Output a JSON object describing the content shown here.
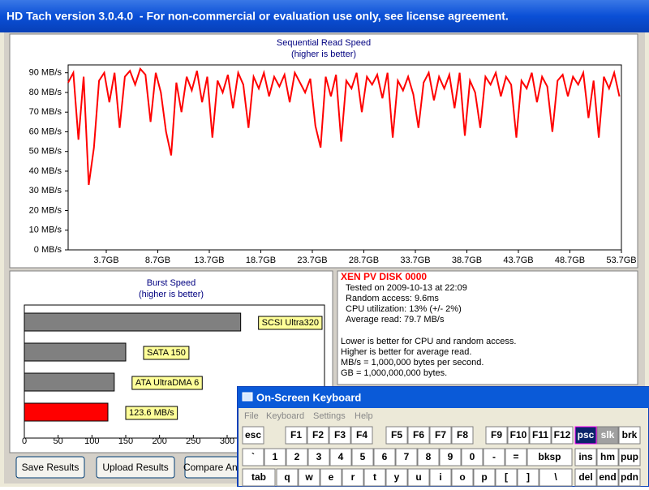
{
  "window": {
    "title": "HD Tach version 3.0.4.0  - For non-commercial or evaluation use only, see license agreement."
  },
  "chart_data": [
    {
      "type": "line",
      "title": "Sequential Read Speed",
      "subtitle": "(higher is better)",
      "x": [
        0,
        0.5,
        1,
        1.5,
        2,
        2.5,
        3,
        3.5,
        4,
        4.5,
        5,
        5.5,
        6,
        6.5,
        7,
        7.5,
        8,
        8.5,
        9,
        9.5,
        10,
        10.5,
        11,
        11.5,
        12,
        12.5,
        13,
        13.5,
        14,
        14.5,
        15,
        15.5,
        16,
        16.5,
        17,
        17.5,
        18,
        18.5,
        19,
        19.5,
        20,
        20.5,
        21,
        21.5,
        22,
        22.5,
        23,
        23.5,
        24,
        24.5,
        25,
        25.5,
        26,
        26.5,
        27,
        27.5,
        28,
        28.5,
        29,
        29.5,
        30,
        30.5,
        31,
        31.5,
        32,
        32.5,
        33,
        33.5,
        34,
        34.5,
        35,
        35.5,
        36,
        36.5,
        37,
        37.5,
        38,
        38.5,
        39,
        39.5,
        40,
        40.5,
        41,
        41.5,
        42,
        42.5,
        43,
        43.5,
        44,
        44.5,
        45,
        45.5,
        46,
        46.5,
        47,
        47.5,
        48,
        48.5,
        49,
        49.5,
        50,
        50.5,
        51,
        51.5,
        52,
        52.5,
        53,
        53.5
      ],
      "values": [
        85,
        90,
        56,
        88,
        33,
        52,
        86,
        90,
        75,
        90,
        62,
        88,
        91,
        84,
        92,
        89,
        65,
        90,
        80,
        60,
        48,
        85,
        70,
        88,
        81,
        91,
        75,
        88,
        57,
        86,
        80,
        89,
        72,
        90,
        84,
        62,
        88,
        82,
        90,
        78,
        88,
        83,
        89,
        75,
        90,
        85,
        80,
        87,
        63,
        52,
        88,
        78,
        89,
        55,
        86,
        82,
        90,
        70,
        88,
        84,
        89,
        77,
        90,
        57,
        86,
        81,
        88,
        79,
        62,
        85,
        90,
        76,
        88,
        82,
        89,
        72,
        90,
        58,
        86,
        80,
        62,
        88,
        84,
        90,
        78,
        88,
        84,
        57,
        86,
        82,
        90,
        75,
        88,
        83,
        60,
        86,
        89,
        78,
        88,
        84,
        90,
        67,
        86,
        57,
        88,
        82,
        90,
        78
      ],
      "color": "#ff0000",
      "xlim": [
        0,
        53.7
      ],
      "xticks": [
        {
          "value": 3.7,
          "label": "3.7GB"
        },
        {
          "value": 8.7,
          "label": "8.7GB"
        },
        {
          "value": 13.7,
          "label": "13.7GB"
        },
        {
          "value": 18.7,
          "label": "18.7GB"
        },
        {
          "value": 23.7,
          "label": "23.7GB"
        },
        {
          "value": 28.7,
          "label": "28.7GB"
        },
        {
          "value": 33.7,
          "label": "33.7GB"
        },
        {
          "value": 38.7,
          "label": "38.7GB"
        },
        {
          "value": 43.7,
          "label": "43.7GB"
        },
        {
          "value": 48.7,
          "label": "48.7GB"
        },
        {
          "value": 53.7,
          "label": "53.7GB"
        }
      ],
      "ylim": [
        0,
        94
      ],
      "yticks": [
        {
          "value": 0,
          "label": "0 MB/s"
        },
        {
          "value": 10,
          "label": "10 MB/s"
        },
        {
          "value": 20,
          "label": "20 MB/s"
        },
        {
          "value": 30,
          "label": "30 MB/s"
        },
        {
          "value": 40,
          "label": "40 MB/s"
        },
        {
          "value": 50,
          "label": "50 MB/s"
        },
        {
          "value": 60,
          "label": "60 MB/s"
        },
        {
          "value": 70,
          "label": "70 MB/s"
        },
        {
          "value": 80,
          "label": "80 MB/s"
        },
        {
          "value": 90,
          "label": "90 MB/s"
        }
      ],
      "grid": false
    },
    {
      "type": "hbar",
      "title": "Burst Speed",
      "subtitle": "(higher is better)",
      "categories": [
        "SCSI Ultra320",
        "SATA 150",
        "ATA UltraDMA 6",
        null
      ],
      "values": [
        320,
        150,
        133,
        123.6
      ],
      "value_labels": [
        null,
        null,
        null,
        "123.6 MB/s"
      ],
      "colors": [
        "#808080",
        "#808080",
        "#808080",
        "#ff0000"
      ],
      "xlim": [
        0,
        444
      ],
      "xticks": [
        0,
        50,
        100,
        150,
        200,
        250,
        300
      ]
    }
  ],
  "info": {
    "title": "XEN PV DISK 0000",
    "results": [
      "Tested on 2009-10-13 at 22:09",
      "Random access: 9.6ms",
      "CPU utilization: 13% (+/- 2%)",
      "Average read: 79.7 MB/s"
    ],
    "notes": [
      "Lower is better for CPU and random access.",
      "Higher is better for average read.",
      "MB/s = 1,000,000 bytes per second.",
      "GB = 1,000,000,000 bytes."
    ]
  },
  "buttons": [
    "Save Results",
    "Upload Results",
    "Compare Another"
  ],
  "keyboard": {
    "title": "On-Screen Keyboard",
    "menu": [
      "File",
      "Keyboard",
      "Settings",
      "Help"
    ],
    "rows": [
      [
        "esc",
        "F1",
        "F2",
        "F3",
        "F4",
        "F5",
        "F6",
        "F7",
        "F8",
        "F9",
        "F10",
        "F11",
        "F12",
        "psc",
        "slk",
        "brk"
      ],
      [
        "`",
        "1",
        "2",
        "3",
        "4",
        "5",
        "6",
        "7",
        "8",
        "9",
        "0",
        "-",
        "=",
        "bksp",
        "ins",
        "hm",
        "pup"
      ],
      [
        "tab",
        "q",
        "w",
        "e",
        "r",
        "t",
        "y",
        "u",
        "i",
        "o",
        "p",
        "[",
        "]",
        "\\",
        "del",
        "end",
        "pdn"
      ]
    ]
  }
}
